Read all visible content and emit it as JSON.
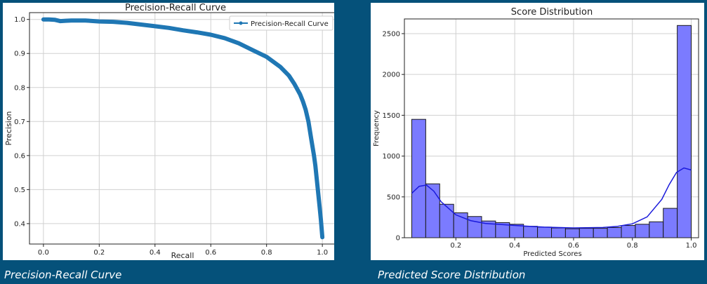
{
  "captions": {
    "left": "Precision-Recall Curve",
    "right": "Predicted Score Distribution"
  },
  "colors": {
    "background": "#05517a",
    "pr_line": "#1f77b4",
    "hist_fill": "#7b7bff",
    "kde_line": "#1a1adb"
  },
  "chart_data": [
    {
      "type": "line",
      "title": "Precision-Recall Curve",
      "xlabel": "Recall",
      "ylabel": "Precision",
      "xlim": [
        -0.05,
        1.05
      ],
      "ylim": [
        0.34,
        1.02
      ],
      "xticks": [
        "0.0",
        "0.2",
        "0.4",
        "0.6",
        "0.8",
        "1.0"
      ],
      "yticks": [
        "0.4",
        "0.5",
        "0.6",
        "0.7",
        "0.8",
        "0.9",
        "1.0"
      ],
      "grid": true,
      "legend": "top-right",
      "series": [
        {
          "name": "Precision-Recall Curve",
          "x": [
            0.0,
            0.02,
            0.04,
            0.06,
            0.08,
            0.1,
            0.15,
            0.2,
            0.25,
            0.3,
            0.35,
            0.4,
            0.45,
            0.5,
            0.55,
            0.6,
            0.65,
            0.7,
            0.75,
            0.8,
            0.85,
            0.88,
            0.9,
            0.92,
            0.93,
            0.94,
            0.95,
            0.96,
            0.97,
            0.975,
            0.98,
            0.985,
            0.99,
            0.995,
            1.0
          ],
          "y": [
            1.0,
            1.0,
            0.999,
            0.995,
            0.996,
            0.997,
            0.997,
            0.994,
            0.993,
            0.99,
            0.985,
            0.98,
            0.975,
            0.968,
            0.962,
            0.955,
            0.945,
            0.93,
            0.91,
            0.89,
            0.86,
            0.835,
            0.81,
            0.78,
            0.76,
            0.735,
            0.7,
            0.65,
            0.6,
            0.57,
            0.53,
            0.49,
            0.45,
            0.41,
            0.36
          ]
        }
      ]
    },
    {
      "type": "bar",
      "title": "Score Distribution",
      "xlabel": "Predicted Scores",
      "ylabel": "Frequency",
      "xlim": [
        0.025,
        1.025
      ],
      "ylim": [
        0,
        2680
      ],
      "xticks": [
        "0.2",
        "0.4",
        "0.6",
        "0.8",
        "1.0"
      ],
      "yticks": [
        "0",
        "500",
        "1000",
        "1500",
        "2000",
        "2500"
      ],
      "grid": true,
      "bin_start": 0.05,
      "bin_width": 0.0475,
      "values": [
        1450,
        660,
        410,
        305,
        260,
        205,
        185,
        165,
        140,
        130,
        120,
        110,
        115,
        115,
        125,
        150,
        165,
        195,
        360,
        2600
      ],
      "kde": {
        "x": [
          0.05,
          0.075,
          0.1,
          0.125,
          0.15,
          0.2,
          0.25,
          0.3,
          0.4,
          0.5,
          0.6,
          0.7,
          0.75,
          0.8,
          0.85,
          0.9,
          0.925,
          0.95,
          0.975,
          1.0
        ],
        "y": [
          545,
          630,
          645,
          570,
          440,
          280,
          210,
          175,
          150,
          130,
          120,
          125,
          140,
          170,
          255,
          470,
          650,
          800,
          855,
          830
        ]
      }
    }
  ]
}
